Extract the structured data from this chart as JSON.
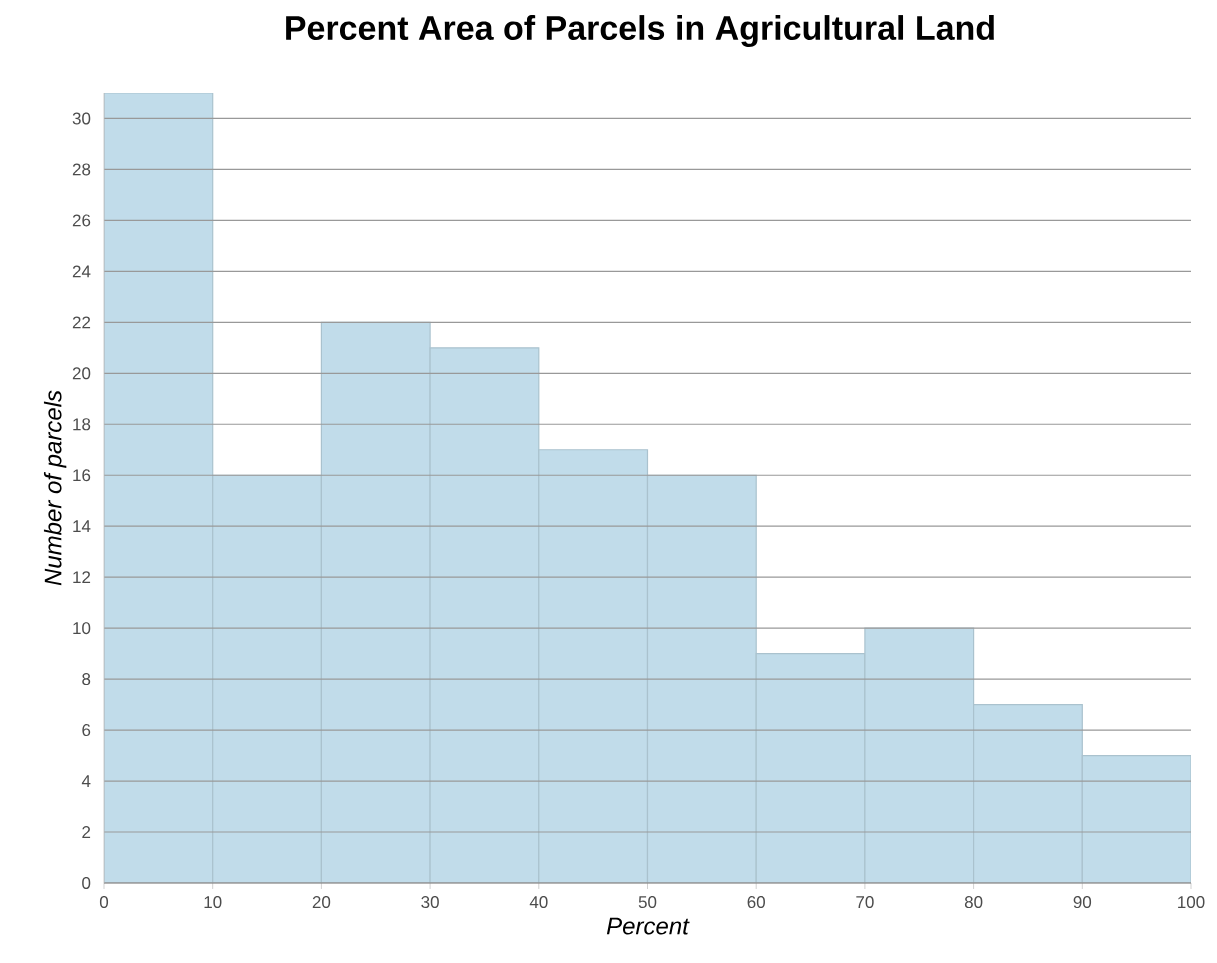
{
  "chart_data": {
    "type": "histogram",
    "title": "Percent Area of Parcels in Agricultural Land",
    "xlabel": "Percent",
    "ylabel": "Number of parcels",
    "bins": [
      0,
      10,
      20,
      30,
      40,
      50,
      60,
      70,
      80,
      90,
      100
    ],
    "values": [
      31,
      16,
      22,
      21,
      17,
      16,
      9,
      10,
      7,
      5
    ],
    "color": "#c1dcea",
    "xlim": [
      0,
      100
    ],
    "xticks": [
      0,
      10,
      20,
      30,
      40,
      50,
      60,
      70,
      80,
      90,
      100
    ],
    "ylim": [
      0,
      31
    ],
    "yticks": [
      0,
      2,
      4,
      6,
      8,
      10,
      12,
      14,
      16,
      18,
      20,
      22,
      24,
      26,
      28,
      30
    ],
    "grid": "y"
  }
}
